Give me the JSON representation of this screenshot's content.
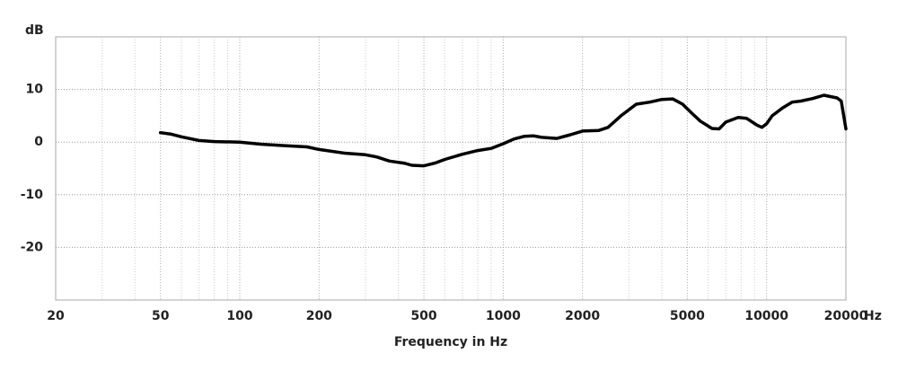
{
  "chart_data": {
    "type": "line",
    "y_unit": "dB",
    "x_unit": "Hz",
    "xlabel": "Frequency in Hz",
    "xscale": "log",
    "xlim": [
      20,
      20000
    ],
    "ylim": [
      -30,
      20
    ],
    "xticks": [
      20,
      50,
      100,
      200,
      500,
      1000,
      2000,
      5000,
      10000,
      20000
    ],
    "x_minor_ticks": [
      30,
      40,
      60,
      70,
      80,
      90,
      300,
      400,
      600,
      700,
      800,
      900,
      3000,
      4000,
      6000,
      7000,
      8000,
      9000
    ],
    "yticks": [
      -20,
      -10,
      0,
      10
    ],
    "grid": true,
    "series": [
      {
        "color": "#000000",
        "x": [
          50,
          55,
          60,
          70,
          80,
          100,
          120,
          150,
          180,
          200,
          250,
          300,
          330,
          370,
          420,
          450,
          500,
          550,
          600,
          700,
          800,
          900,
          1000,
          1100,
          1200,
          1300,
          1400,
          1600,
          1800,
          2000,
          2300,
          2500,
          2800,
          3200,
          3600,
          4000,
          4400,
          4800,
          5200,
          5600,
          6200,
          6600,
          7000,
          7800,
          8400,
          9200,
          9600,
          10000,
          10500,
          11500,
          12500,
          13500,
          15000,
          16500,
          18500,
          19200,
          20000
        ],
        "values": [
          1.8,
          1.5,
          1.0,
          0.3,
          0.1,
          0,
          -0.4,
          -0.7,
          -0.9,
          -1.4,
          -2.1,
          -2.4,
          -2.8,
          -3.6,
          -4.0,
          -4.4,
          -4.5,
          -4.0,
          -3.3,
          -2.3,
          -1.6,
          -1.2,
          -0.3,
          0.6,
          1.1,
          1.2,
          0.9,
          0.7,
          1.4,
          2.1,
          2.2,
          2.8,
          5.0,
          7.2,
          7.6,
          8.1,
          8.2,
          7.2,
          5.5,
          4.0,
          2.6,
          2.5,
          3.8,
          4.7,
          4.5,
          3.2,
          2.8,
          3.5,
          5.0,
          6.5,
          7.6,
          7.8,
          8.3,
          8.9,
          8.4,
          7.8,
          2.5
        ]
      }
    ]
  }
}
